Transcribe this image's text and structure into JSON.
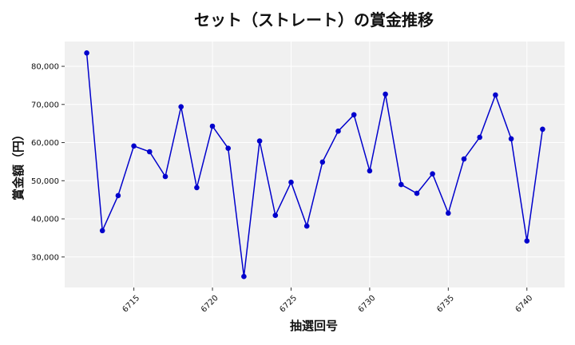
{
  "chart_data": {
    "type": "line",
    "title": "セット（ストレート）の賞金推移",
    "xlabel": "抽選回号",
    "ylabel": "賞金額（円）",
    "x": [
      6712,
      6713,
      6714,
      6715,
      6716,
      6717,
      6718,
      6719,
      6720,
      6721,
      6722,
      6723,
      6724,
      6725,
      6726,
      6727,
      6728,
      6729,
      6730,
      6731,
      6732,
      6733,
      6734,
      6735,
      6736,
      6737,
      6738,
      6739,
      6740,
      6741
    ],
    "series": [
      {
        "values": [
          83500,
          36900,
          46100,
          59100,
          57600,
          51100,
          69400,
          48200,
          64300,
          58500,
          24900,
          60400,
          40900,
          49600,
          38100,
          54900,
          63000,
          67300,
          52600,
          72700,
          49000,
          46700,
          51800,
          41500,
          55700,
          61400,
          72500,
          61000,
          34200,
          63500
        ],
        "color": "#0000cc"
      }
    ],
    "xticks": [
      "6715",
      "6720",
      "6725",
      "6730",
      "6735",
      "6740"
    ],
    "yticks": [
      "30,000",
      "40,000",
      "50,000",
      "60,000",
      "70,000",
      "80,000"
    ],
    "xlim": [
      6710.6,
      6742.4
    ],
    "ylim": [
      22000,
      86500
    ],
    "grid": true,
    "plot_background": "#f0f0f0"
  }
}
